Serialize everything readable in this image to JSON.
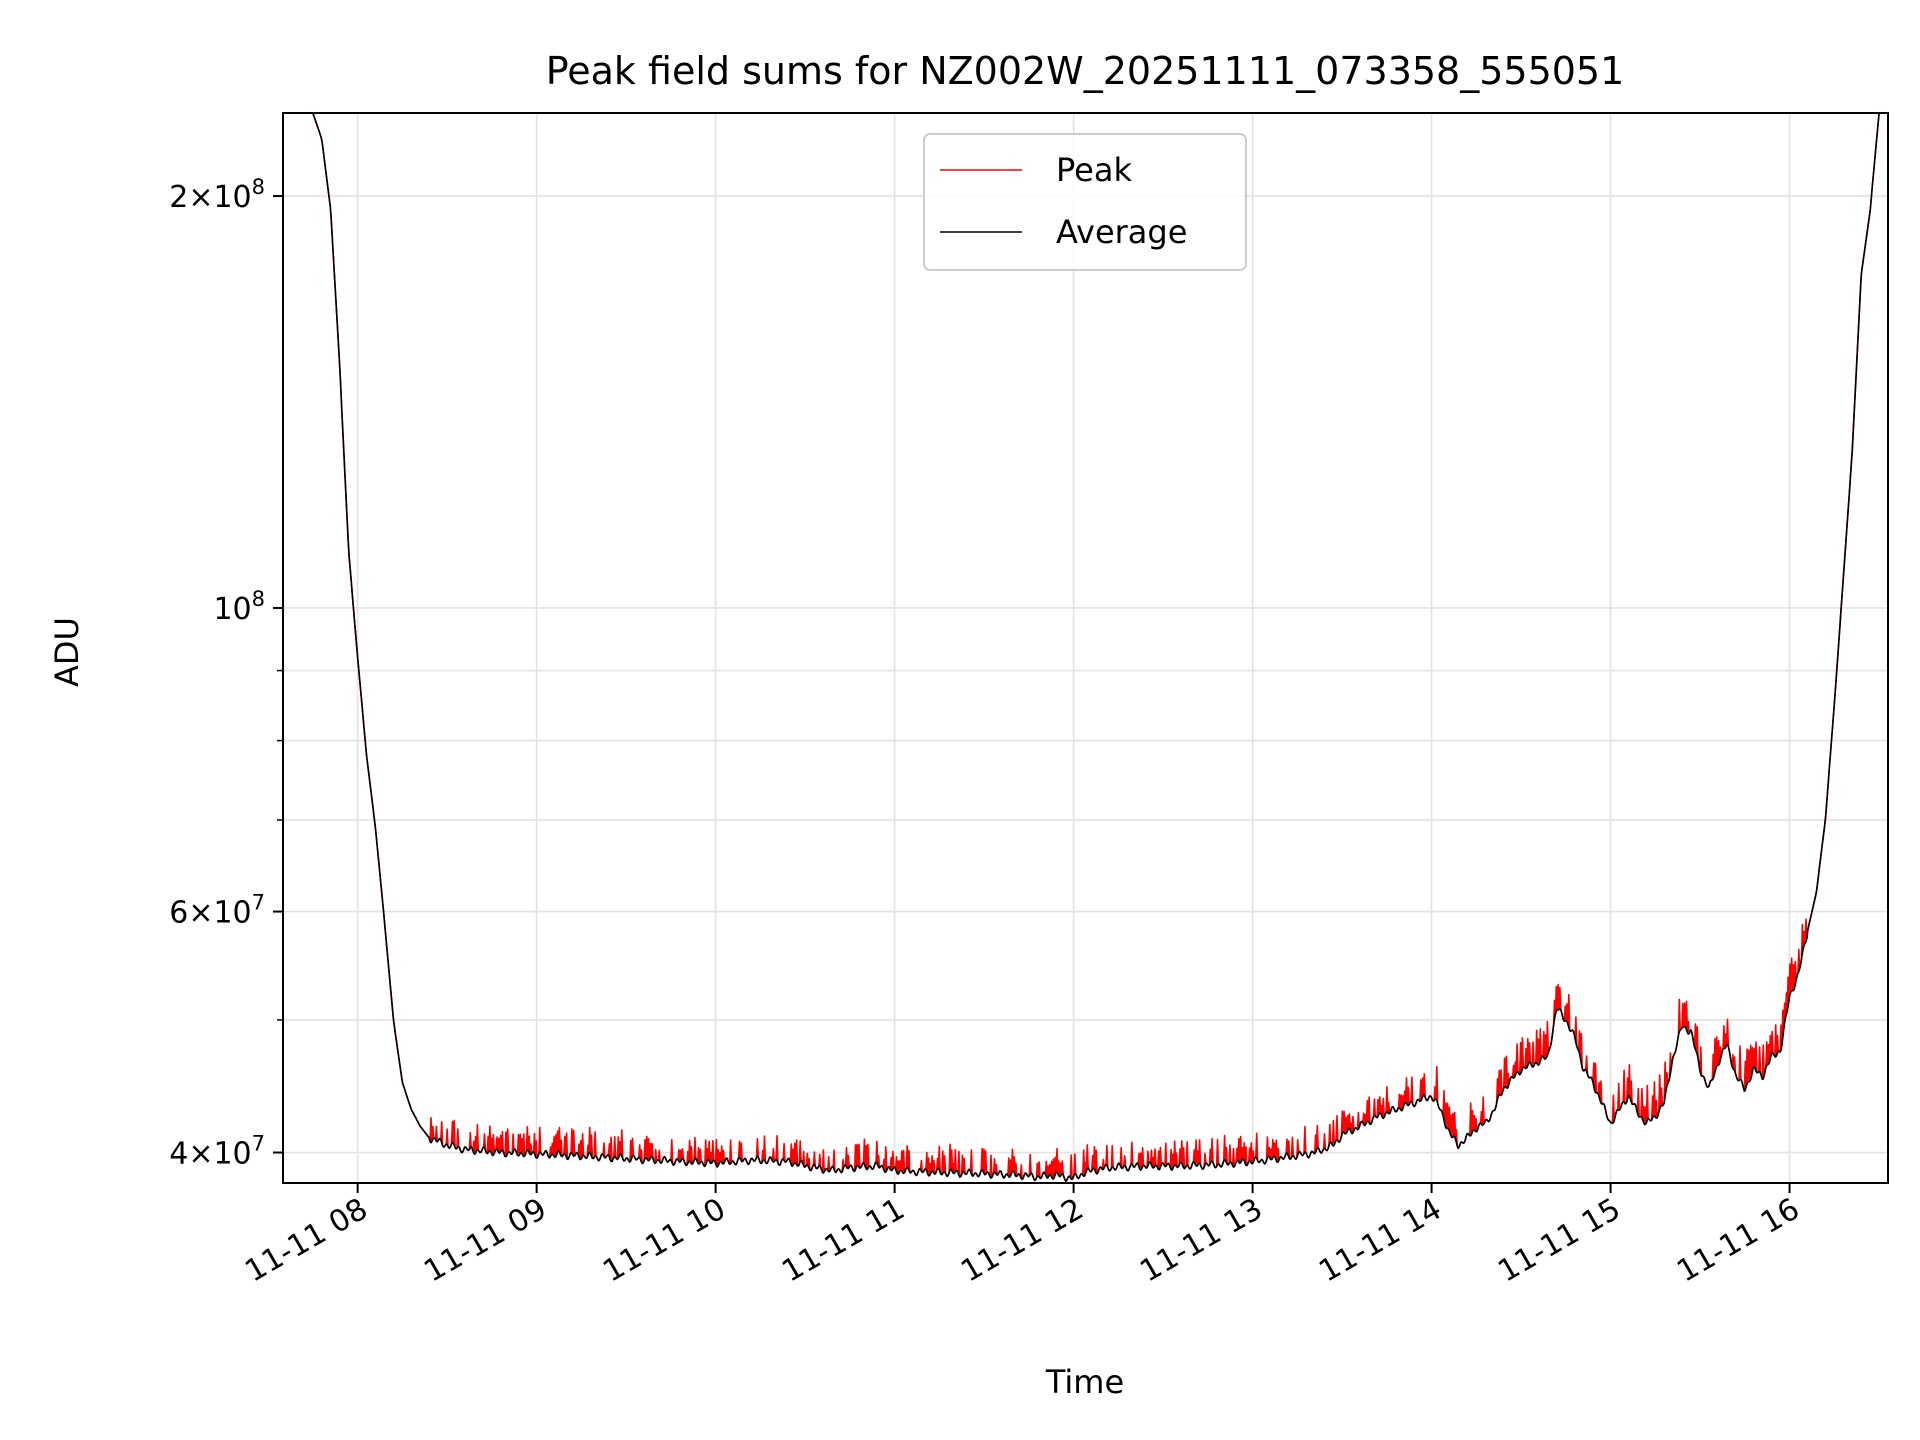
{
  "chart_data": {
    "type": "line",
    "title": "Peak field sums for NZ002W_20251111_073358_555051",
    "xlabel": "Time",
    "ylabel": "ADU",
    "yscale": "log",
    "xlim": [
      7.583,
      16.55
    ],
    "ylim": [
      38000000.0,
      230000000.0
    ],
    "grid": true,
    "legend_position": "top-center",
    "x_ticks": [
      {
        "value": 8,
        "label": "11-11 08"
      },
      {
        "value": 9,
        "label": "11-11 09"
      },
      {
        "value": 10,
        "label": "11-11 10"
      },
      {
        "value": 11,
        "label": "11-11 11"
      },
      {
        "value": 12,
        "label": "11-11 12"
      },
      {
        "value": 13,
        "label": "11-11 13"
      },
      {
        "value": 14,
        "label": "11-11 14"
      },
      {
        "value": 15,
        "label": "11-11 15"
      },
      {
        "value": 16,
        "label": "11-11 16"
      }
    ],
    "y_major_ticks": [
      {
        "value": 40000000.0,
        "mant": "4",
        "exp": "7"
      },
      {
        "value": 60000000.0,
        "mant": "6",
        "exp": "7"
      },
      {
        "value": 100000000.0,
        "mant": "",
        "exp": "8"
      },
      {
        "value": 200000000.0,
        "mant": "2",
        "exp": "8"
      }
    ],
    "y_minor_gridlines": [
      50000000.0,
      70000000.0,
      80000000.0,
      90000000.0
    ],
    "series": [
      {
        "name": "Average",
        "color": "#000000",
        "x": [
          7.583,
          7.75,
          7.8,
          7.85,
          7.9,
          7.95,
          8.0,
          8.05,
          8.1,
          8.15,
          8.2,
          8.25,
          8.3,
          8.35,
          8.4,
          8.5,
          8.6,
          8.8,
          9.0,
          9.2,
          9.5,
          9.8,
          10.0,
          10.2,
          10.4,
          10.55,
          10.65,
          10.75,
          10.9,
          11.0,
          11.2,
          11.5,
          11.7,
          11.8,
          11.9,
          12.0,
          12.05,
          12.1,
          12.2,
          12.4,
          12.6,
          12.8,
          13.0,
          13.2,
          13.35,
          13.45,
          13.5,
          13.6,
          13.7,
          13.8,
          13.9,
          14.0,
          14.05,
          14.1,
          14.15,
          14.2,
          14.25,
          14.3,
          14.35,
          14.4,
          14.5,
          14.6,
          14.65,
          14.7,
          14.75,
          14.8,
          14.85,
          14.9,
          14.95,
          15.0,
          15.05,
          15.1,
          15.15,
          15.2,
          15.25,
          15.3,
          15.35,
          15.4,
          15.45,
          15.5,
          15.55,
          15.6,
          15.65,
          15.7,
          15.75,
          15.8,
          15.85,
          15.9,
          15.95,
          16.0,
          16.05,
          16.1,
          16.15,
          16.2,
          16.25,
          16.3,
          16.35,
          16.4,
          16.45,
          16.5,
          16.55
        ],
        "values": [
          230000000.0,
          230000000.0,
          220000000.0,
          195000000.0,
          150000000.0,
          110000000.0,
          92000000.0,
          78000000.0,
          69000000.0,
          59000000.0,
          50000000.0,
          45000000.0,
          43000000.0,
          41800000.0,
          41000000.0,
          40500000.0,
          40200000.0,
          40000000.0,
          39900000.0,
          39800000.0,
          39600000.0,
          39400000.0,
          39300000.0,
          39500000.0,
          39400000.0,
          39000000.0,
          38800000.0,
          39000000.0,
          39100000.0,
          38800000.0,
          38700000.0,
          38600000.0,
          38500000.0,
          38400000.0,
          38500000.0,
          38300000.0,
          38600000.0,
          38800000.0,
          39000000.0,
          39100000.0,
          39100000.0,
          39200000.0,
          39400000.0,
          39700000.0,
          40000000.0,
          40500000.0,
          41200000.0,
          41800000.0,
          42500000.0,
          43000000.0,
          43500000.0,
          44000000.0,
          43000000.0,
          41300000.0,
          40500000.0,
          41000000.0,
          41700000.0,
          42000000.0,
          43000000.0,
          44500000.0,
          46000000.0,
          46600000.0,
          47000000.0,
          51000000.0,
          50000000.0,
          48500000.0,
          46000000.0,
          45000000.0,
          43500000.0,
          42000000.0,
          43000000.0,
          44000000.0,
          42800000.0,
          42000000.0,
          42500000.0,
          43500000.0,
          47000000.0,
          49500000.0,
          49000000.0,
          46000000.0,
          44500000.0,
          46500000.0,
          48000000.0,
          45500000.0,
          44500000.0,
          46000000.0,
          45500000.0,
          47000000.0,
          47500000.0,
          52000000.0,
          54000000.0,
          58000000.0,
          62000000.0,
          70000000.0,
          85000000.0,
          105000000.0,
          130000000.0,
          175000000.0,
          195000000.0,
          230000000.0,
          230000000.0
        ]
      },
      {
        "name": "Peak",
        "color": "#ff0000",
        "note": "tracks the Average with frequent small upward spikes",
        "spike_ranges": [
          {
            "x_from": 8.4,
            "x_to": 13.9,
            "max_factor": 1.045
          },
          {
            "x_from": 13.9,
            "x_to": 16.1,
            "max_factor": 1.06
          }
        ]
      }
    ]
  }
}
